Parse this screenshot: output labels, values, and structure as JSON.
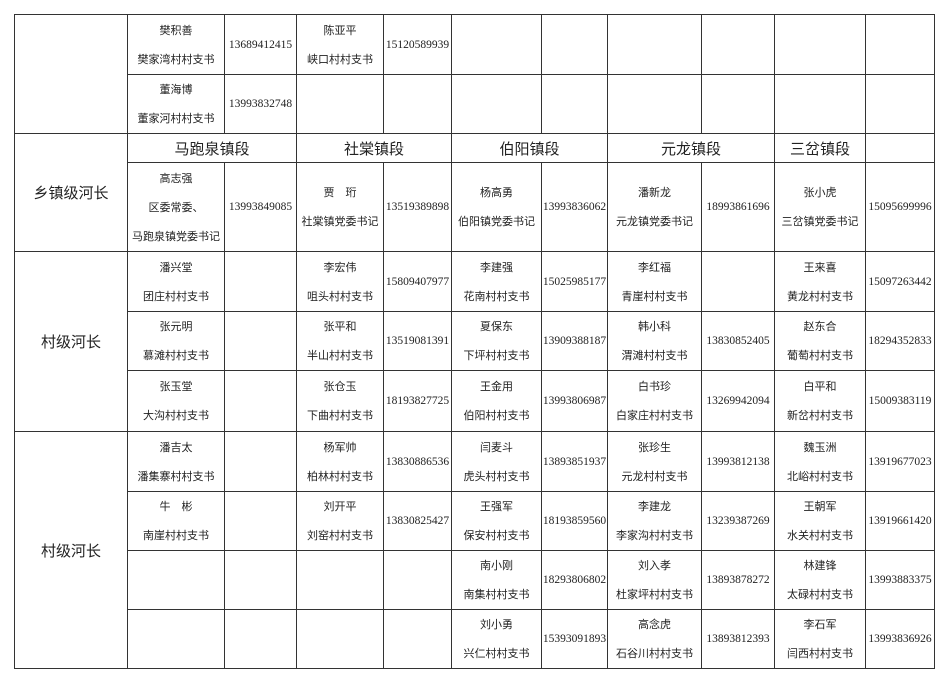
{
  "sections": [
    {
      "label": "",
      "rows": [
        [
          {
            "name": "樊积善",
            "title": [
              "樊家湾村村支书"
            ],
            "phone": "13689412415"
          },
          {
            "name": "陈亚平",
            "title": [
              "峡口村村支书"
            ],
            "phone": "15120589939"
          },
          {},
          {},
          {}
        ],
        [
          {
            "name": "董海博",
            "title": [
              "董家河村村支书"
            ],
            "phone": "13993832748"
          },
          {},
          {},
          {},
          {}
        ]
      ]
    },
    {
      "label": "乡镇级河长",
      "segments": [
        "马跑泉镇段",
        "社棠镇段",
        "伯阳镇段",
        "元龙镇段",
        "三岔镇段",
        ""
      ],
      "rows": [
        [
          {
            "name": "高志强",
            "title": [
              "区委常委、",
              "马跑泉镇党委书记"
            ],
            "phone": "13993849085"
          },
          {
            "name": "贾　珩",
            "title": [
              "社棠镇党委书记"
            ],
            "phone": "13519389898"
          },
          {
            "name": "杨高勇",
            "title": [
              "伯阳镇党委书记"
            ],
            "phone": "13993836062"
          },
          {
            "name": "潘新龙",
            "title": [
              "元龙镇党委书记"
            ],
            "phone": "18993861696"
          },
          {
            "name": "张小虎",
            "title": [
              "三岔镇党委书记"
            ],
            "phone": "15095699996"
          }
        ]
      ]
    },
    {
      "label": "村级河长",
      "rows": [
        [
          {
            "name": "潘兴堂",
            "title": [
              "团庄村村支书"
            ],
            "phone": ""
          },
          {
            "name": "李宏伟",
            "title": [
              "咀头村村支书"
            ],
            "phone": "15809407977"
          },
          {
            "name": "李建强",
            "title": [
              "花南村村支书"
            ],
            "phone": "15025985177"
          },
          {
            "name": "李红福",
            "title": [
              "青崖村村支书"
            ],
            "phone": ""
          },
          {
            "name": "王来喜",
            "title": [
              "黄龙村村支书"
            ],
            "phone": "15097263442"
          }
        ],
        [
          {
            "name": "张元明",
            "title": [
              "慕滩村村支书"
            ],
            "phone": ""
          },
          {
            "name": "张平和",
            "title": [
              "半山村村支书"
            ],
            "phone": "13519081391"
          },
          {
            "name": "夏保东",
            "title": [
              "下坪村村支书"
            ],
            "phone": "13909388187"
          },
          {
            "name": "韩小科",
            "title": [
              "渭滩村村支书"
            ],
            "phone": "13830852405"
          },
          {
            "name": "赵东合",
            "title": [
              "葡萄村村支书"
            ],
            "phone": "18294352833"
          }
        ],
        [
          {
            "name": "张玉堂",
            "title": [
              "大沟村村支书"
            ],
            "phone": ""
          },
          {
            "name": "张仓玉",
            "title": [
              "下曲村村支书"
            ],
            "phone": "18193827725"
          },
          {
            "name": "王金用",
            "title": [
              "伯阳村村支书"
            ],
            "phone": "13993806987"
          },
          {
            "name": "白书珍",
            "title": [
              "白家庄村村支书"
            ],
            "phone": "13269942094"
          },
          {
            "name": "白平和",
            "title": [
              "新岔村村支书"
            ],
            "phone": "15009383119"
          }
        ]
      ]
    },
    {
      "label": "村级河长",
      "rows": [
        [
          {
            "name": "潘吉太",
            "title": [
              "潘集寨村村支书"
            ],
            "phone": ""
          },
          {
            "name": "杨军帅",
            "title": [
              "柏林村村支书"
            ],
            "phone": "13830886536"
          },
          {
            "name": "闫麦斗",
            "title": [
              "虎头村村支书"
            ],
            "phone": "13893851937"
          },
          {
            "name": "张珍生",
            "title": [
              "元龙村村支书"
            ],
            "phone": "13993812138"
          },
          {
            "name": "魏玉洲",
            "title": [
              "北峪村村支书"
            ],
            "phone": "13919677023"
          }
        ],
        [
          {
            "name": "牛　彬",
            "title": [
              "南崖村村支书"
            ],
            "phone": ""
          },
          {
            "name": "刘开平",
            "title": [
              "刘窑村村支书"
            ],
            "phone": "13830825427"
          },
          {
            "name": "王强军",
            "title": [
              "保安村村支书"
            ],
            "phone": "18193859560"
          },
          {
            "name": "李建龙",
            "title": [
              "李家沟村村支书"
            ],
            "phone": "13239387269"
          },
          {
            "name": "王朝军",
            "title": [
              "水关村村支书"
            ],
            "phone": "13919661420"
          }
        ],
        [
          {},
          {},
          {
            "name": "南小刚",
            "title": [
              "南集村村支书"
            ],
            "phone": "18293806802"
          },
          {
            "name": "刘入孝",
            "title": [
              "杜家坪村村支书"
            ],
            "phone": "13893878272"
          },
          {
            "name": "林建锋",
            "title": [
              "太碌村村支书"
            ],
            "phone": "13993883375"
          }
        ],
        [
          {},
          {},
          {
            "name": "刘小勇",
            "title": [
              "兴仁村村支书"
            ],
            "phone": "15393091893"
          },
          {
            "name": "高念虎",
            "title": [
              "石谷川村村支书"
            ],
            "phone": "13893812393"
          },
          {
            "name": "李石军",
            "title": [
              "闫西村村支书"
            ],
            "phone": "13993836926"
          }
        ]
      ]
    }
  ]
}
